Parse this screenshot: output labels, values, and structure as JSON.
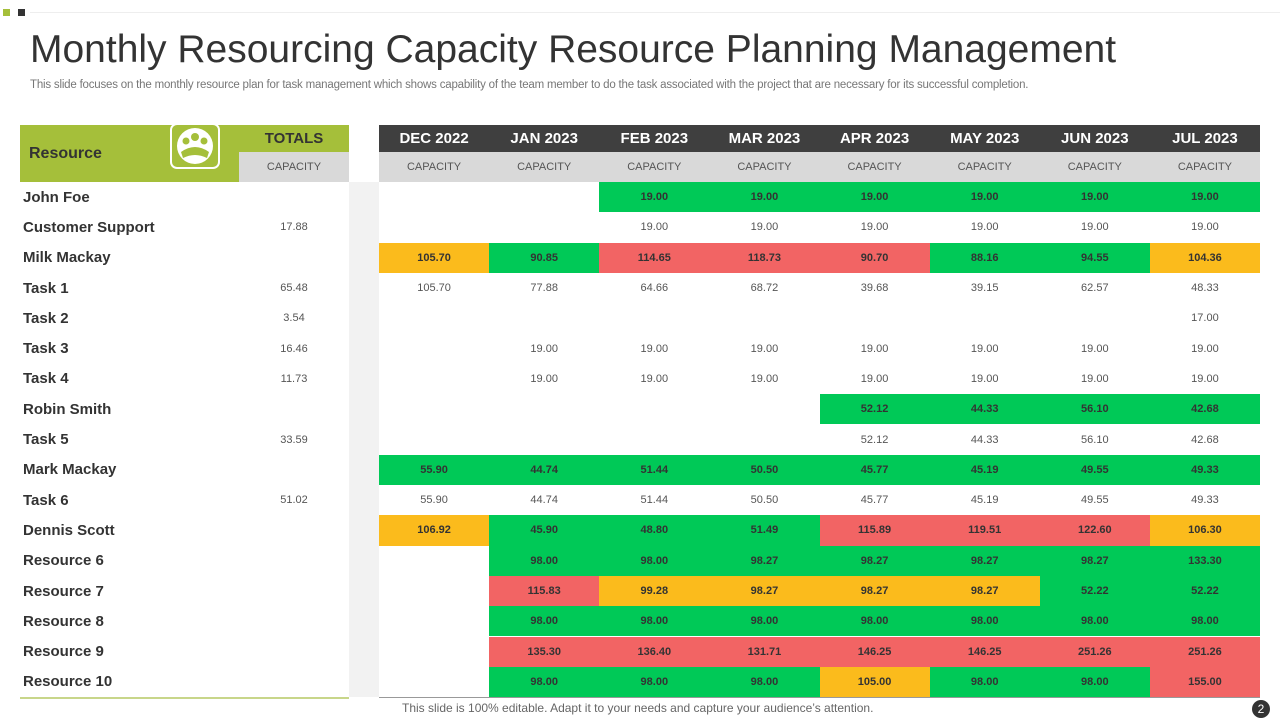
{
  "header": {
    "title": "Monthly Resourcing Capacity Resource Planning Management",
    "subtitle": "This slide focuses on the monthly resource plan for task management which shows capability of the team member to do the task associated with the project that are necessary for its successful completion."
  },
  "table": {
    "resource_header": "Resource",
    "totals_header": "TOTALS",
    "subheader": "CAPACITY",
    "status_colors": {
      "g": "#00c957",
      "r": "#f26464",
      "o": "#fbbb1c"
    },
    "months": [
      "DEC 2022",
      "JAN 2023",
      "FEB 2023",
      "MAR 2023",
      "APR 2023",
      "MAY 2023",
      "JUN 2023",
      "JUL 2023"
    ],
    "rows": [
      {
        "name": "John Foe",
        "total": null,
        "cells": [
          null,
          null,
          "19.00",
          "19.00",
          "19.00",
          "19.00",
          "19.00",
          "19.00"
        ],
        "status": [
          null,
          null,
          "g",
          "g",
          "g",
          "g",
          "g",
          "g"
        ]
      },
      {
        "name": "Customer Support",
        "total": "17.88",
        "cells": [
          null,
          null,
          "19.00",
          "19.00",
          "19.00",
          "19.00",
          "19.00",
          "19.00"
        ],
        "status": [
          null,
          null,
          null,
          null,
          null,
          null,
          null,
          null
        ]
      },
      {
        "name": "Milk Mackay",
        "total": null,
        "cells": [
          "105.70",
          "90.85",
          "114.65",
          "118.73",
          "90.70",
          "88.16",
          "94.55",
          "104.36"
        ],
        "status": [
          "o",
          "g",
          "r",
          "r",
          "r",
          "g",
          "g",
          "o"
        ]
      },
      {
        "name": "Task 1",
        "total": "65.48",
        "cells": [
          "105.70",
          "77.88",
          "64.66",
          "68.72",
          "39.68",
          "39.15",
          "62.57",
          "48.33"
        ],
        "status": [
          null,
          null,
          null,
          null,
          null,
          null,
          null,
          null
        ]
      },
      {
        "name": "Task 2",
        "total": "3.54",
        "cells": [
          null,
          null,
          null,
          null,
          null,
          null,
          null,
          "17.00"
        ],
        "status": [
          null,
          null,
          null,
          null,
          null,
          null,
          null,
          null
        ]
      },
      {
        "name": "Task 3",
        "total": "16.46",
        "cells": [
          null,
          "19.00",
          "19.00",
          "19.00",
          "19.00",
          "19.00",
          "19.00",
          "19.00"
        ],
        "status": [
          null,
          null,
          null,
          null,
          null,
          null,
          null,
          null
        ]
      },
      {
        "name": "Task 4",
        "total": "11.73",
        "cells": [
          null,
          "19.00",
          "19.00",
          "19.00",
          "19.00",
          "19.00",
          "19.00",
          "19.00"
        ],
        "status": [
          null,
          null,
          null,
          null,
          null,
          null,
          null,
          null
        ]
      },
      {
        "name": "Robin Smith",
        "total": null,
        "cells": [
          null,
          null,
          null,
          null,
          "52.12",
          "44.33",
          "56.10",
          "42.68"
        ],
        "status": [
          null,
          null,
          null,
          null,
          "g",
          "g",
          "g",
          "g"
        ]
      },
      {
        "name": "Task 5",
        "total": "33.59",
        "cells": [
          null,
          null,
          null,
          null,
          "52.12",
          "44.33",
          "56.10",
          "42.68"
        ],
        "status": [
          null,
          null,
          null,
          null,
          null,
          null,
          null,
          null
        ]
      },
      {
        "name": "Mark Mackay",
        "total": null,
        "cells": [
          "55.90",
          "44.74",
          "51.44",
          "50.50",
          "45.77",
          "45.19",
          "49.55",
          "49.33"
        ],
        "status": [
          "g",
          "g",
          "g",
          "g",
          "g",
          "g",
          "g",
          "g"
        ]
      },
      {
        "name": "Task 6",
        "total": "51.02",
        "cells": [
          "55.90",
          "44.74",
          "51.44",
          "50.50",
          "45.77",
          "45.19",
          "49.55",
          "49.33"
        ],
        "status": [
          null,
          null,
          null,
          null,
          null,
          null,
          null,
          null
        ]
      },
      {
        "name": "Dennis Scott",
        "total": null,
        "cells": [
          "106.92",
          "45.90",
          "48.80",
          "51.49",
          "115.89",
          "119.51",
          "122.60",
          "106.30"
        ],
        "status": [
          "o",
          "g",
          "g",
          "g",
          "r",
          "r",
          "r",
          "o"
        ]
      },
      {
        "name": "Resource 6",
        "total": null,
        "cells": [
          null,
          "98.00",
          "98.00",
          "98.27",
          "98.27",
          "98.27",
          "98.27",
          "133.30"
        ],
        "status": [
          null,
          "g",
          "g",
          "g",
          "g",
          "g",
          "g",
          "g"
        ]
      },
      {
        "name": "Resource 7",
        "total": null,
        "cells": [
          null,
          "115.83",
          "99.28",
          "98.27",
          "98.27",
          "98.27",
          "52.22",
          "52.22"
        ],
        "status": [
          null,
          "r",
          "o",
          "o",
          "o",
          "o",
          "g",
          "g"
        ]
      },
      {
        "name": "Resource 8",
        "total": null,
        "cells": [
          null,
          "98.00",
          "98.00",
          "98.00",
          "98.00",
          "98.00",
          "98.00",
          "98.00"
        ],
        "status": [
          null,
          "g",
          "g",
          "g",
          "g",
          "g",
          "g",
          "g"
        ]
      },
      {
        "name": "Resource 9",
        "total": null,
        "cells": [
          null,
          "135.30",
          "136.40",
          "131.71",
          "146.25",
          "146.25",
          "251.26",
          "251.26"
        ],
        "status": [
          null,
          "r",
          "r",
          "r",
          "r",
          "r",
          "r",
          "r"
        ]
      },
      {
        "name": "Resource 10",
        "total": null,
        "cells": [
          null,
          "98.00",
          "98.00",
          "98.00",
          "105.00",
          "98.00",
          "98.00",
          "155.00"
        ],
        "status": [
          null,
          "g",
          "g",
          "g",
          "o",
          "g",
          "g",
          "r"
        ]
      }
    ]
  },
  "footer": {
    "note": "This slide is 100% editable. Adapt it to your needs and capture your audience’s attention.",
    "page_number": "2"
  }
}
